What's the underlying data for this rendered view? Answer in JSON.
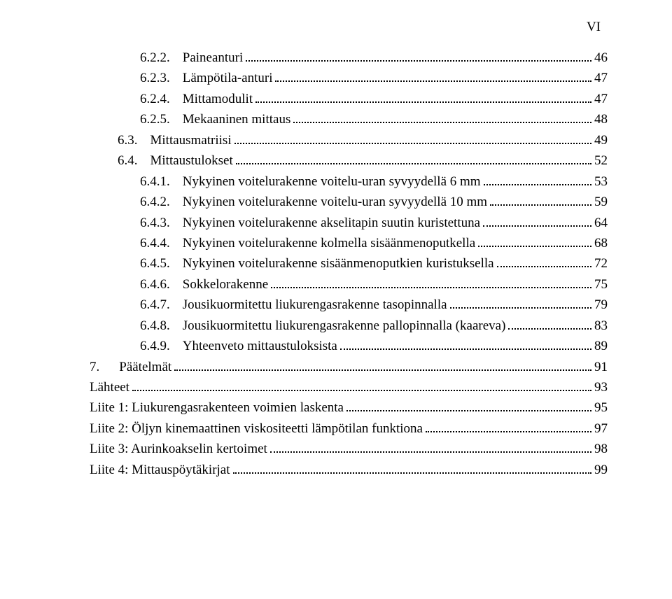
{
  "page_number_roman": "VI",
  "toc": [
    {
      "indent": 2,
      "num": "6.2.2.",
      "title": "Paineanturi",
      "page": "46"
    },
    {
      "indent": 2,
      "num": "6.2.3.",
      "title": "Lämpötila-anturi",
      "page": "47"
    },
    {
      "indent": 2,
      "num": "6.2.4.",
      "title": "Mittamodulit",
      "page": "47"
    },
    {
      "indent": 2,
      "num": "6.2.5.",
      "title": "Mekaaninen mittaus",
      "page": "48"
    },
    {
      "indent": 1,
      "num": "6.3.",
      "title": "Mittausmatriisi",
      "page": "49"
    },
    {
      "indent": 1,
      "num": "6.4.",
      "title": "Mittaustulokset",
      "page": "52"
    },
    {
      "indent": 2,
      "num": "6.4.1.",
      "title": "Nykyinen voitelurakenne voitelu-uran syvyydellä 6 mm",
      "page": "53"
    },
    {
      "indent": 2,
      "num": "6.4.2.",
      "title": "Nykyinen voitelurakenne voitelu-uran syvyydellä 10 mm",
      "page": "59"
    },
    {
      "indent": 2,
      "num": "6.4.3.",
      "title": "Nykyinen voitelurakenne akselitapin suutin kuristettuna",
      "page": "64"
    },
    {
      "indent": 2,
      "num": "6.4.4.",
      "title": "Nykyinen voitelurakenne kolmella sisäänmenoputkella",
      "page": "68"
    },
    {
      "indent": 2,
      "num": "6.4.5.",
      "title": "Nykyinen voitelurakenne sisäänmenoputkien kuristuksella",
      "page": "72"
    },
    {
      "indent": 2,
      "num": "6.4.6.",
      "title": "Sokkelorakenne",
      "page": "75"
    },
    {
      "indent": 2,
      "num": "6.4.7.",
      "title": "Jousikuormitettu liukurengasrakenne tasopinnalla",
      "page": "79"
    },
    {
      "indent": 2,
      "num": "6.4.8.",
      "title": "Jousikuormitettu liukurengasrakenne pallopinnalla (kaareva)",
      "page": "83"
    },
    {
      "indent": 2,
      "num": "6.4.9.",
      "title": "Yhteenveto mittaustuloksista",
      "page": "89"
    },
    {
      "indent": 0,
      "num": "7.",
      "title": "Päätelmät",
      "page": "91"
    },
    {
      "indent": 0,
      "num": "",
      "title": "Lähteet",
      "page": "93"
    },
    {
      "indent": 0,
      "num": "",
      "title": "Liite 1: Liukurengasrakenteen voimien laskenta",
      "page": "95"
    },
    {
      "indent": 0,
      "num": "",
      "title": "Liite 2: Öljyn kinemaattinen viskositeetti lämpötilan funktiona",
      "page": "97"
    },
    {
      "indent": 0,
      "num": "",
      "title": "Liite 3: Aurinkoakselin kertoimet",
      "page": "98"
    },
    {
      "indent": 0,
      "num": "",
      "title": "Liite 4: Mittauspöytäkirjat",
      "page": "99"
    }
  ]
}
